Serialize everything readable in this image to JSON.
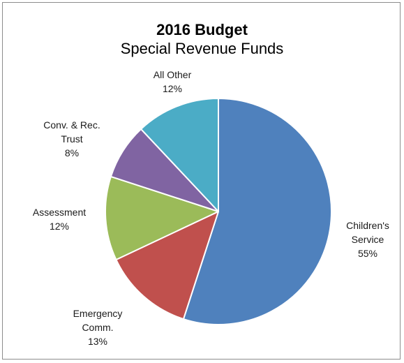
{
  "chart_data": {
    "type": "pie",
    "title": "2016 Budget",
    "subtitle": "Special Revenue Funds",
    "slices": [
      {
        "label_lines": [
          "Children's",
          "Service"
        ],
        "pct_label": "55%",
        "value": 55,
        "color": "#4f81bd"
      },
      {
        "label_lines": [
          "Emergency",
          "Comm."
        ],
        "pct_label": "13%",
        "value": 13,
        "color": "#c0504d"
      },
      {
        "label_lines": [
          "Assessment"
        ],
        "pct_label": "12%",
        "value": 12,
        "color": "#9bbb59"
      },
      {
        "label_lines": [
          "Conv. & Rec.",
          "Trust"
        ],
        "pct_label": "8%",
        "value": 8,
        "color": "#8064a2"
      },
      {
        "label_lines": [
          "All Other"
        ],
        "pct_label": "12%",
        "value": 12,
        "color": "#4bacc6"
      }
    ]
  }
}
